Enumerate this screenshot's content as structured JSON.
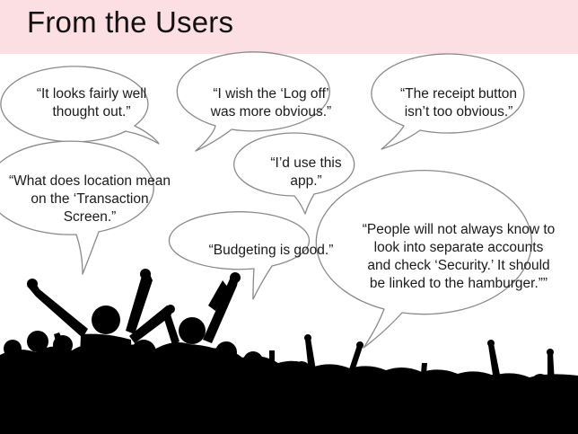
{
  "title": "From the Users",
  "quotes": [
    "“It looks fairly well thought out.”",
    "“I wish the ‘Log off’ was more obvious.”",
    "“The receipt button isn’t too obvious.”",
    "“What does location mean on the ‘Transaction Screen.”",
    "“I’d use this app.”",
    "“Budgeting is good.”",
    "“People will not always know to look into separate accounts and check ‘Security.’ It should be linked to the hamburger.””"
  ],
  "colors": {
    "header": "#fbdfe3",
    "bubble_fill": "#ffffff",
    "bubble_stroke": "#8a8a8a",
    "crowd": "#000000"
  }
}
